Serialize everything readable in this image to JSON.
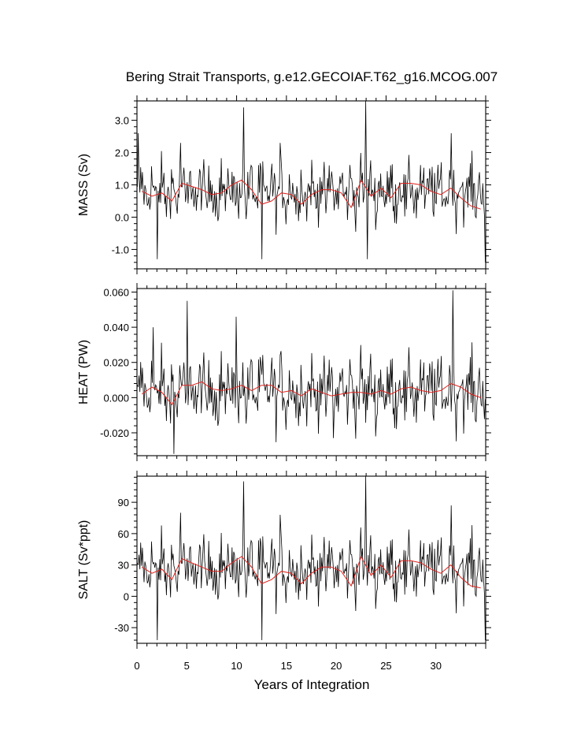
{
  "chart_data": {
    "type": "line",
    "title": "Bering Strait Transports, g.e12.GECOIAF.T62_g16.MCOG.007",
    "xlabel": "Years of Integration",
    "xlim": [
      0,
      35
    ],
    "x_ticks": [
      0,
      5,
      10,
      15,
      20,
      25,
      30
    ],
    "x_tick_labels": [
      "0",
      "5",
      "10",
      "15",
      "20",
      "25",
      "30"
    ],
    "series_colors": {
      "monthly": "#000000",
      "annual": "#e0201b"
    },
    "grid": false,
    "panels": [
      {
        "ylabel": "MASS (Sv)",
        "ylim": [
          -1.6,
          3.6
        ],
        "y_ticks": [
          -1.0,
          0.0,
          1.0,
          2.0,
          3.0
        ],
        "y_tick_labels": [
          "-1.0",
          "0.0",
          "1.0",
          "2.0",
          "3.0"
        ],
        "annual_x": [
          0.5,
          1.5,
          2.5,
          3.5,
          4.5,
          5.5,
          6.5,
          7.5,
          8.5,
          9.5,
          10.5,
          11.5,
          12.5,
          13.5,
          14.5,
          15.5,
          16.5,
          17.5,
          18.5,
          19.5,
          20.5,
          21.5,
          22.5,
          23.5,
          24.5,
          25.5,
          26.5,
          27.5,
          28.5,
          29.5,
          30.5,
          31.5,
          32.5,
          33.5,
          34.5
        ],
        "annual_values": [
          0.8,
          0.65,
          0.75,
          0.5,
          1.05,
          0.95,
          0.85,
          0.7,
          0.75,
          1.0,
          1.15,
          0.85,
          0.4,
          0.5,
          0.75,
          0.7,
          0.4,
          0.7,
          0.85,
          0.85,
          0.75,
          0.3,
          1.15,
          0.65,
          0.9,
          0.6,
          1.05,
          1.05,
          1.0,
          0.8,
          0.7,
          0.9,
          0.6,
          0.35,
          0.25
        ],
        "monthly_mean": 0.8,
        "monthly_std": 0.55,
        "monthly_spikes": [
          [
            0.1,
            2.6
          ],
          [
            2.0,
            -1.3
          ],
          [
            10.7,
            3.4
          ],
          [
            22.9,
            3.6
          ],
          [
            31.5,
            2.6
          ],
          [
            12.5,
            -1.3
          ],
          [
            23.1,
            -1.3
          ],
          [
            34.9,
            -1.4
          ],
          [
            4.3,
            2.3
          ],
          [
            14.3,
            2.3
          ]
        ]
      },
      {
        "ylabel": "HEAT (PW)",
        "ylim": [
          -0.033,
          0.062
        ],
        "y_ticks": [
          -0.02,
          0.0,
          0.02,
          0.04,
          0.06
        ],
        "y_tick_labels": [
          "-0.020",
          "0.000",
          "0.020",
          "0.040",
          "0.060"
        ],
        "annual_x": [
          0.5,
          1.5,
          2.5,
          3.5,
          4.5,
          5.5,
          6.5,
          7.5,
          8.5,
          9.5,
          10.5,
          11.5,
          12.5,
          13.5,
          14.5,
          15.5,
          16.5,
          17.5,
          18.5,
          19.5,
          20.5,
          21.5,
          22.5,
          23.5,
          24.5,
          25.5,
          26.5,
          27.5,
          28.5,
          29.5,
          30.5,
          31.5,
          32.5,
          33.5,
          34.5
        ],
        "annual_values": [
          0.002,
          0.006,
          0.003,
          -0.004,
          0.007,
          0.007,
          0.009,
          0.005,
          0.004,
          0.005,
          0.007,
          0.004,
          0.007,
          0.007,
          0.003,
          0.004,
          0.001,
          0.005,
          0.003,
          0.001,
          0.002,
          0.003,
          0.003,
          0.002,
          0.004,
          0.002,
          0.005,
          0.006,
          0.004,
          0.003,
          0.004,
          0.008,
          0.006,
          0.002,
          0.0
        ],
        "monthly_mean": 0.004,
        "monthly_std": 0.012,
        "monthly_spikes": [
          [
            5.0,
            0.055
          ],
          [
            31.7,
            0.061
          ],
          [
            3.7,
            -0.032
          ],
          [
            9.9,
            0.046
          ],
          [
            19.7,
            -0.023
          ],
          [
            1.6,
            0.04
          ]
        ]
      },
      {
        "ylabel": "SALT (Sv*ppt)",
        "ylim": [
          -45,
          115
        ],
        "y_ticks": [
          -30,
          0,
          30,
          60,
          90
        ],
        "y_tick_labels": [
          "-30",
          "0",
          "30",
          "60",
          "90"
        ],
        "annual_x": [
          0.5,
          1.5,
          2.5,
          3.5,
          4.5,
          5.5,
          6.5,
          7.5,
          8.5,
          9.5,
          10.5,
          11.5,
          12.5,
          13.5,
          14.5,
          15.5,
          16.5,
          17.5,
          18.5,
          19.5,
          20.5,
          21.5,
          22.5,
          23.5,
          24.5,
          25.5,
          26.5,
          27.5,
          28.5,
          29.5,
          30.5,
          31.5,
          32.5,
          33.5,
          34.5
        ],
        "annual_values": [
          28,
          22,
          26,
          16,
          36,
          32,
          28,
          24,
          24,
          32,
          38,
          28,
          12,
          16,
          24,
          22,
          12,
          22,
          28,
          28,
          24,
          10,
          38,
          20,
          30,
          18,
          34,
          34,
          32,
          26,
          22,
          30,
          18,
          10,
          8
        ],
        "monthly_mean": 27,
        "monthly_std": 18,
        "monthly_spikes": [
          [
            10.7,
            110
          ],
          [
            22.9,
            115
          ],
          [
            2.0,
            -42
          ],
          [
            12.5,
            -42
          ],
          [
            34.9,
            -42
          ],
          [
            31.5,
            87
          ],
          [
            4.3,
            80
          ],
          [
            14.3,
            78
          ]
        ]
      }
    ]
  }
}
